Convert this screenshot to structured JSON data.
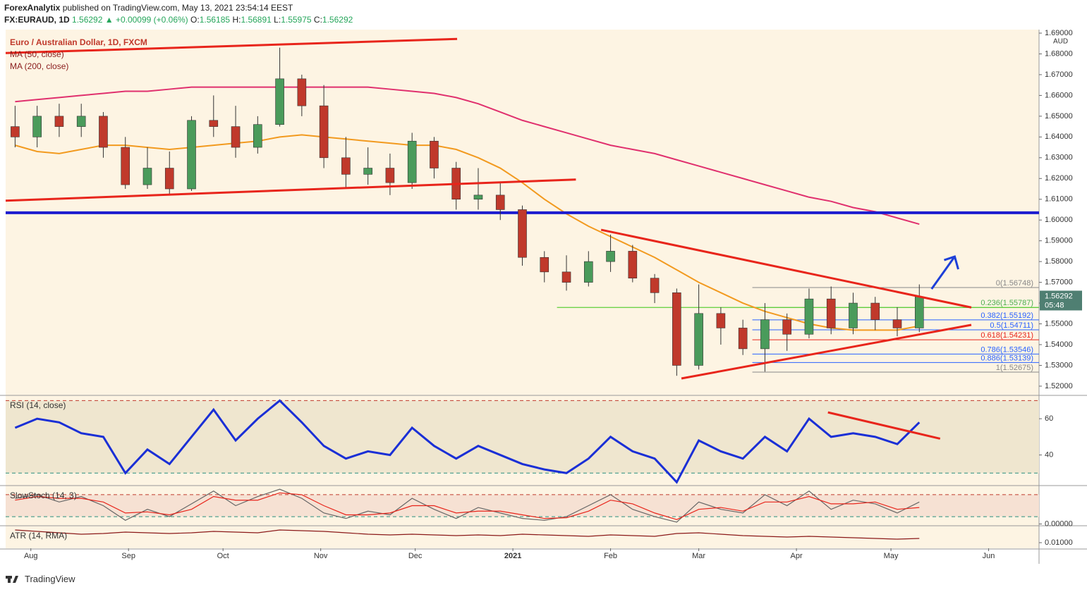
{
  "header": {
    "publisher": "ForexAnalytix",
    "published": "published on TradingView.com, May 13, 2021 23:54:14 EEST",
    "symbol": "FX:EURAUD, 1D",
    "quote": "1.56292 ▲ +0.00099 (+0.06%)",
    "ohlc": [
      "O:",
      "1.56185",
      "H:",
      "1.56891",
      "L:",
      "1.55975",
      "C:",
      "1.56292"
    ]
  },
  "footer": {
    "brand": "TradingView"
  },
  "chart_data": [
    {
      "type": "candlestick",
      "title": "Euro / Australian Dollar, 1D, FXCM",
      "currency": "AUD",
      "countdown": "05:48",
      "last_price": {
        "value": 1.56292,
        "label": "1.56292"
      },
      "up_color": "#4a9b5b",
      "down_color": "#c0392b",
      "xlim": [
        -3,
        325
      ],
      "xticks": [
        {
          "value": 5,
          "label": "Aug"
        },
        {
          "value": 36,
          "label": "Sep"
        },
        {
          "value": 66,
          "label": "Oct"
        },
        {
          "value": 97,
          "label": "Nov"
        },
        {
          "value": 127,
          "label": "Dec"
        },
        {
          "value": 158,
          "label": "2021"
        },
        {
          "value": 189,
          "label": "Feb"
        },
        {
          "value": 217,
          "label": "Mar"
        },
        {
          "value": 248,
          "label": "Apr"
        },
        {
          "value": 278,
          "label": "May"
        },
        {
          "value": 309,
          "label": "Jun"
        }
      ],
      "ylim": [
        1.5159,
        1.6917
      ],
      "yticks": [
        {
          "value": 1.52,
          "label": "1.52000"
        },
        {
          "value": 1.53,
          "label": "1.53000"
        },
        {
          "value": 1.54,
          "label": "1.54000"
        },
        {
          "value": 1.55,
          "label": "1.55000"
        },
        {
          "value": 1.56,
          "label": "1.56000"
        },
        {
          "value": 1.57,
          "label": "1.57000"
        },
        {
          "value": 1.58,
          "label": "1.58000"
        },
        {
          "value": 1.59,
          "label": "1.59000"
        },
        {
          "value": 1.6,
          "label": "1.60000"
        },
        {
          "value": 1.61,
          "label": "1.61000"
        },
        {
          "value": 1.62,
          "label": "1.62000"
        },
        {
          "value": 1.63,
          "label": "1.63000"
        },
        {
          "value": 1.64,
          "label": "1.64000"
        },
        {
          "value": 1.65,
          "label": "1.65000"
        },
        {
          "value": 1.66,
          "label": "1.66000"
        },
        {
          "value": 1.67,
          "label": "1.67000"
        },
        {
          "value": 1.68,
          "label": "1.68000"
        },
        {
          "value": 1.69,
          "label": "1.69000"
        }
      ],
      "grid": false,
      "x": [
        0,
        7,
        14,
        21,
        28,
        35,
        42,
        49,
        56,
        63,
        70,
        77,
        84,
        91,
        98,
        105,
        112,
        119,
        126,
        133,
        140,
        147,
        154,
        161,
        168,
        175,
        182,
        189,
        196,
        203,
        210,
        217,
        224,
        231,
        238,
        245,
        252,
        259,
        266,
        273,
        280,
        287
      ],
      "open": [
        1.645,
        1.64,
        1.65,
        1.645,
        1.65,
        1.635,
        1.617,
        1.625,
        1.615,
        1.648,
        1.645,
        1.635,
        1.646,
        1.668,
        1.655,
        1.63,
        1.622,
        1.625,
        1.618,
        1.638,
        1.625,
        1.61,
        1.612,
        1.605,
        1.582,
        1.575,
        1.57,
        1.58,
        1.585,
        1.572,
        1.565,
        1.53,
        1.555,
        1.548,
        1.538,
        1.552,
        1.545,
        1.562,
        1.548,
        1.56,
        1.552,
        1.548
      ],
      "high": [
        1.655,
        1.655,
        1.656,
        1.656,
        1.652,
        1.64,
        1.635,
        1.633,
        1.65,
        1.66,
        1.655,
        1.65,
        1.683,
        1.67,
        1.665,
        1.64,
        1.635,
        1.632,
        1.642,
        1.64,
        1.628,
        1.625,
        1.618,
        1.607,
        1.585,
        1.583,
        1.585,
        1.593,
        1.588,
        1.574,
        1.567,
        1.569,
        1.558,
        1.552,
        1.56,
        1.555,
        1.567,
        1.568,
        1.565,
        1.563,
        1.558,
        1.569
      ],
      "low": [
        1.635,
        1.635,
        1.64,
        1.64,
        1.63,
        1.615,
        1.615,
        1.612,
        1.614,
        1.64,
        1.63,
        1.632,
        1.645,
        1.65,
        1.625,
        1.615,
        1.617,
        1.612,
        1.615,
        1.62,
        1.605,
        1.605,
        1.6,
        1.578,
        1.57,
        1.566,
        1.568,
        1.575,
        1.57,
        1.56,
        1.525,
        1.528,
        1.54,
        1.535,
        1.527,
        1.537,
        1.543,
        1.545,
        1.545,
        1.547,
        1.544,
        1.546
      ],
      "close": [
        1.64,
        1.65,
        1.645,
        1.65,
        1.635,
        1.617,
        1.625,
        1.615,
        1.648,
        1.645,
        1.635,
        1.646,
        1.668,
        1.655,
        1.63,
        1.622,
        1.625,
        1.618,
        1.638,
        1.625,
        1.61,
        1.612,
        1.605,
        1.582,
        1.575,
        1.57,
        1.58,
        1.585,
        1.572,
        1.565,
        1.53,
        1.555,
        1.548,
        1.538,
        1.552,
        1.545,
        1.562,
        1.548,
        1.56,
        1.552,
        1.548,
        1.563
      ],
      "series": [
        {
          "name": "MA (50, close)",
          "color": "#f29a1f",
          "values": [
            1.636,
            1.633,
            1.632,
            1.634,
            1.636,
            1.636,
            1.635,
            1.634,
            1.635,
            1.636,
            1.637,
            1.638,
            1.64,
            1.641,
            1.64,
            1.639,
            1.638,
            1.637,
            1.636,
            1.636,
            1.634,
            1.63,
            1.625,
            1.618,
            1.61,
            1.603,
            1.597,
            1.592,
            1.587,
            1.582,
            1.576,
            1.57,
            1.565,
            1.56,
            1.556,
            1.553,
            1.55,
            1.548,
            1.547,
            1.547,
            1.547,
            1.549
          ]
        },
        {
          "name": "MA (200, close)",
          "color": "#e0306e",
          "values": [
            1.657,
            1.658,
            1.659,
            1.66,
            1.661,
            1.662,
            1.662,
            1.663,
            1.664,
            1.664,
            1.664,
            1.664,
            1.664,
            1.664,
            1.664,
            1.664,
            1.664,
            1.663,
            1.662,
            1.661,
            1.659,
            1.656,
            1.652,
            1.648,
            1.645,
            1.642,
            1.639,
            1.636,
            1.634,
            1.632,
            1.629,
            1.626,
            1.623,
            1.62,
            1.617,
            1.614,
            1.611,
            1.609,
            1.606,
            1.604,
            1.601,
            1.598
          ]
        }
      ],
      "trend_lines": [
        {
          "color": "#e8251b",
          "x": [
            -3,
            140.3
          ],
          "y": [
            1.6804,
            1.6872
          ]
        },
        {
          "color": "#e8251b",
          "x": [
            -3,
            178
          ],
          "y": [
            1.6093,
            1.6195
          ]
        },
        {
          "color": "#e8251b",
          "x": [
            186,
            303.5
          ],
          "y": [
            1.5953,
            1.5579
          ]
        },
        {
          "color": "#e8251b",
          "x": [
            211.5,
            303.5
          ],
          "y": [
            1.5237,
            1.5495
          ]
        }
      ],
      "level_line": {
        "color": "#1c1ccf",
        "value": 1.6035
      },
      "support_line": {
        "color": "#5fcf3a",
        "x": [
          172,
          325
        ],
        "value": 1.5579
      },
      "arrow": {
        "color": "#1d3fd8",
        "x": [
          290.9,
          296
        ],
        "y": [
          1.5668,
          1.5824
        ]
      },
      "fib_range": [
        234,
        325
      ],
      "fib_levels": [
        {
          "value": 1.56748,
          "label": "0(1.56748)",
          "color": "#888888"
        },
        {
          "value": 1.55787,
          "label": "0.236(1.55787)",
          "color": "#4caf50"
        },
        {
          "value": 1.55192,
          "label": "0.382(1.55192)",
          "color": "#2962ff"
        },
        {
          "value": 1.54711,
          "label": "0.5(1.54711)",
          "color": "#2962ff"
        },
        {
          "value": 1.54231,
          "label": "0.618(1.54231)",
          "color": "#e8251b"
        },
        {
          "value": 1.53546,
          "label": "0.786(1.53546)",
          "color": "#2962ff"
        },
        {
          "value": 1.53139,
          "label": "0.886(1.53139)",
          "color": "#2962ff"
        },
        {
          "value": 1.52675,
          "label": "1(1.52675)",
          "color": "#888888"
        }
      ]
    },
    {
      "type": "line",
      "title": "RSI (14, close)",
      "ylim": [
        23.5,
        72.5
      ],
      "yticks": [
        40,
        60
      ],
      "levels": [
        30,
        70
      ],
      "band_color": "#efe6cf",
      "series": [
        {
          "color": "#1a2fd6",
          "values": [
            55,
            60,
            58,
            52,
            50,
            30,
            43,
            35,
            50,
            65,
            48,
            60,
            70,
            58,
            45,
            38,
            42,
            40,
            55,
            45,
            38,
            45,
            40,
            35,
            32,
            30,
            38,
            50,
            42,
            38,
            25,
            48,
            42,
            38,
            50,
            42,
            60,
            50,
            52,
            50,
            46,
            58
          ]
        }
      ],
      "trend_lines": [
        {
          "color": "#e8251b",
          "x": [
            258,
            293.6
          ],
          "y": [
            63.5,
            49
          ]
        }
      ]
    },
    {
      "type": "line",
      "title": "SlowStoch (14, 3)",
      "ylim": [
        -3,
        103
      ],
      "yticks": [
        {
          "value": 0,
          "label": "0.00000"
        }
      ],
      "levels": [
        20,
        80
      ],
      "band_color": "#f6e1d3",
      "series": [
        {
          "color": "#666666",
          "values": [
            70,
            80,
            60,
            75,
            50,
            10,
            40,
            20,
            55,
            90,
            50,
            75,
            95,
            70,
            30,
            15,
            35,
            25,
            70,
            40,
            15,
            45,
            30,
            15,
            10,
            20,
            50,
            80,
            40,
            20,
            5,
            60,
            40,
            30,
            80,
            50,
            90,
            40,
            65,
            55,
            30,
            60
          ]
        },
        {
          "color": "#e8251b",
          "values": [
            65,
            75,
            70,
            70,
            60,
            30,
            33,
            25,
            40,
            75,
            65,
            65,
            85,
            80,
            50,
            25,
            25,
            30,
            50,
            50,
            30,
            35,
            35,
            25,
            15,
            17,
            35,
            65,
            55,
            30,
            12,
            40,
            45,
            35,
            60,
            60,
            75,
            55,
            55,
            60,
            40,
            45
          ]
        }
      ]
    },
    {
      "type": "line",
      "title": "ATR (14, RMA)",
      "ylim": [
        0.0092,
        0.0123
      ],
      "yticks": [
        {
          "value": 0.01,
          "label": "0.01000"
        }
      ],
      "series": [
        {
          "color": "#8b1a1a",
          "values": [
            0.0118,
            0.0116,
            0.0114,
            0.0112,
            0.0113,
            0.0115,
            0.0114,
            0.0113,
            0.0114,
            0.0116,
            0.0115,
            0.0114,
            0.0118,
            0.0117,
            0.0116,
            0.0114,
            0.0112,
            0.0111,
            0.0112,
            0.0111,
            0.011,
            0.0111,
            0.011,
            0.0112,
            0.0111,
            0.011,
            0.0109,
            0.0111,
            0.011,
            0.0109,
            0.0113,
            0.0114,
            0.0112,
            0.011,
            0.0109,
            0.0108,
            0.0109,
            0.0108,
            0.0107,
            0.0106,
            0.0105,
            0.0106
          ]
        }
      ]
    }
  ]
}
